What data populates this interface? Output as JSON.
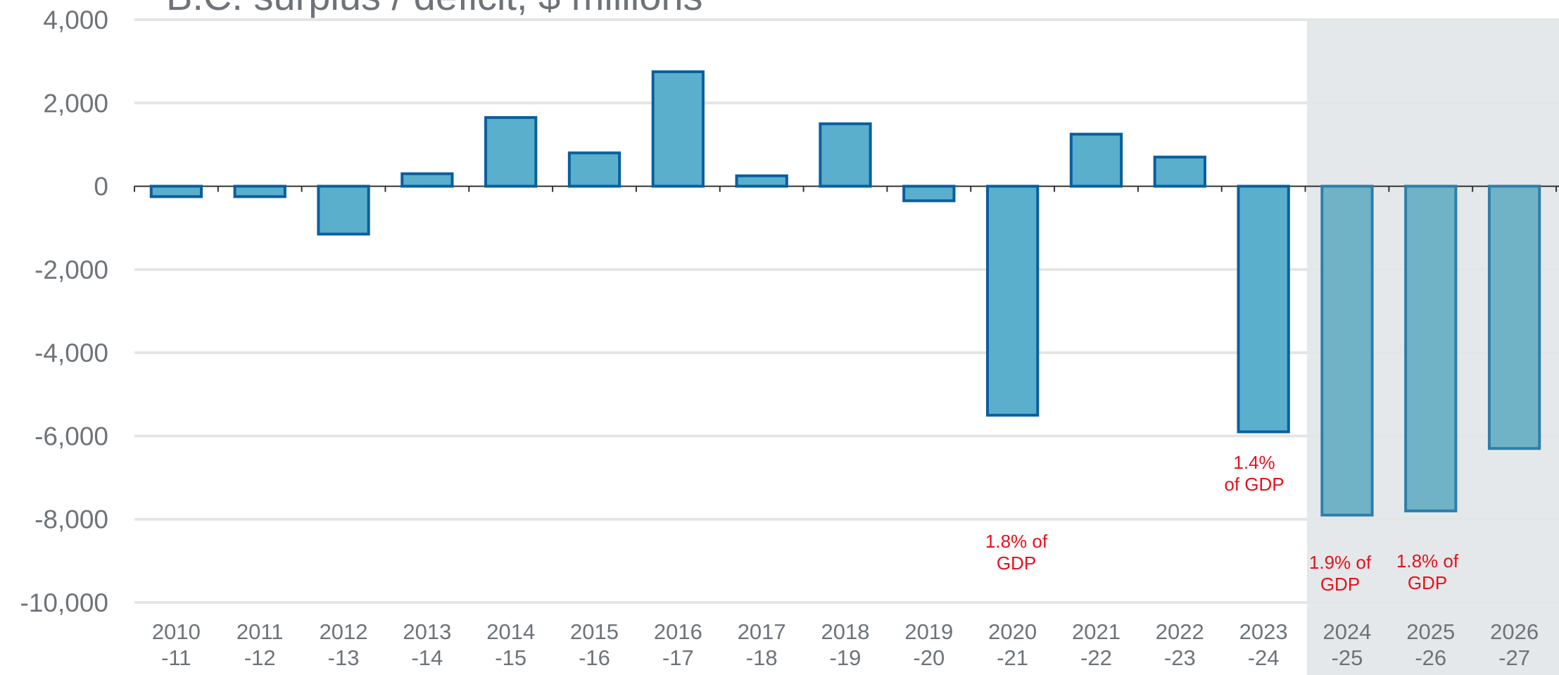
{
  "chart_data": {
    "type": "bar",
    "title": "B.C. surplus / deficit, $ millions",
    "categories": [
      [
        "2010",
        "-11"
      ],
      [
        "2011",
        "-12"
      ],
      [
        "2012",
        "-13"
      ],
      [
        "2013",
        "-14"
      ],
      [
        "2014",
        "-15"
      ],
      [
        "2015",
        "-16"
      ],
      [
        "2016",
        "-17"
      ],
      [
        "2017",
        "-18"
      ],
      [
        "2018",
        "-19"
      ],
      [
        "2019",
        "-20"
      ],
      [
        "2020",
        "-21"
      ],
      [
        "2021",
        "-22"
      ],
      [
        "2022",
        "-23"
      ],
      [
        "2023",
        "-24"
      ],
      [
        "2024",
        "-25"
      ],
      [
        "2025",
        "-26"
      ],
      [
        "2026",
        "-27"
      ]
    ],
    "values": [
      -250,
      -250,
      -1150,
      300,
      1650,
      800,
      2750,
      250,
      1500,
      -350,
      -5500,
      1250,
      700,
      -5900,
      -7900,
      -7800,
      -6300
    ],
    "colors": [
      "#5aafcc",
      "#5aafcc",
      "#5aafcc",
      "#5aafcc",
      "#5aafcc",
      "#5aafcc",
      "#5aafcc",
      "#5aafcc",
      "#5aafcc",
      "#5aafcc",
      "#5aafcc",
      "#5aafcc",
      "#5aafcc",
      "#5aafcc",
      "#70b3c7",
      "#70b3c7",
      "#70b3c7"
    ],
    "ylim": [
      -10000,
      4000
    ],
    "yticks": [
      {
        "value": -10000,
        "label": "-10,000"
      },
      {
        "value": -8000,
        "label": "-8,000"
      },
      {
        "value": -6000,
        "label": "-6,000"
      },
      {
        "value": -4000,
        "label": "-4,000"
      },
      {
        "value": -2000,
        "label": "-2,000"
      },
      0,
      {
        "value": 2000,
        "label": "2,000"
      },
      {
        "value": 4000,
        "label": "4,000"
      }
    ],
    "grid": true,
    "annotations": [
      [
        "1.8% of",
        "GDP"
      ],
      [
        "1.4%",
        "of GDP"
      ],
      [
        "1.9% of",
        "GDP"
      ],
      [
        "1.8% of",
        "GDP"
      ]
    ]
  }
}
